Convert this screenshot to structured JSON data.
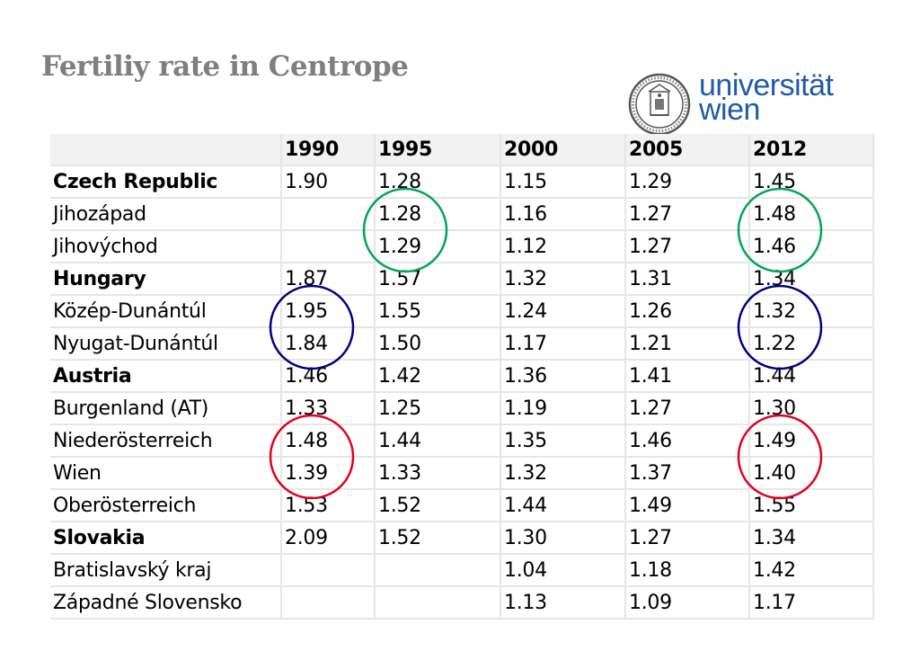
{
  "title": "Fertiliy rate in Centrope",
  "logo": {
    "line1": "universität",
    "line2": "wien",
    "seal": "university-seal-icon",
    "color": "#1f5ba8"
  },
  "table": {
    "headers": [
      "",
      "1990",
      "1995",
      "2000",
      "2005",
      "2012"
    ],
    "rows": [
      {
        "name": "Czech Republic",
        "country": true,
        "values": [
          "1.90",
          "1.28",
          "1.15",
          "1.29",
          "1.45"
        ]
      },
      {
        "name": "Jihozápad",
        "country": false,
        "values": [
          "",
          "1.28",
          "1.16",
          "1.27",
          "1.48"
        ]
      },
      {
        "name": "Jihovýchod",
        "country": false,
        "values": [
          "",
          "1.29",
          "1.12",
          "1.27",
          "1.46"
        ]
      },
      {
        "name": "Hungary",
        "country": true,
        "values": [
          "1.87",
          "1.57",
          "1.32",
          "1.31",
          "1.34"
        ]
      },
      {
        "name": "Közép-Dunántúl",
        "country": false,
        "values": [
          "1.95",
          "1.55",
          "1.24",
          "1.26",
          "1.32"
        ]
      },
      {
        "name": "Nyugat-Dunántúl",
        "country": false,
        "values": [
          "1.84",
          "1.50",
          "1.17",
          "1.21",
          "1.22"
        ]
      },
      {
        "name": "Austria",
        "country": true,
        "values": [
          "1.46",
          "1.42",
          "1.36",
          "1.41",
          "1.44"
        ]
      },
      {
        "name": "Burgenland (AT)",
        "country": false,
        "values": [
          "1.33",
          "1.25",
          "1.19",
          "1.27",
          "1.30"
        ]
      },
      {
        "name": "Niederösterreich",
        "country": false,
        "values": [
          "1.48",
          "1.44",
          "1.35",
          "1.46",
          "1.49"
        ]
      },
      {
        "name": "Wien",
        "country": false,
        "values": [
          "1.39",
          "1.33",
          "1.32",
          "1.37",
          "1.40"
        ]
      },
      {
        "name": "Oberösterreich",
        "country": false,
        "values": [
          "1.53",
          "1.52",
          "1.44",
          "1.49",
          "1.55"
        ]
      },
      {
        "name": "Slovakia",
        "country": true,
        "values": [
          "2.09",
          "1.52",
          "1.30",
          "1.27",
          "1.34"
        ]
      },
      {
        "name": "Bratislavský kraj",
        "country": false,
        "values": [
          "",
          "",
          "1.04",
          "1.18",
          "1.42"
        ]
      },
      {
        "name": "Západné Slovensko",
        "country": false,
        "values": [
          "",
          "",
          "1.13",
          "1.09",
          "1.17"
        ]
      }
    ]
  },
  "highlights": [
    {
      "color": "#00a651",
      "column": "1995",
      "rows": [
        "Jihozápad",
        "Jihovýchod"
      ]
    },
    {
      "color": "#00a651",
      "column": "2012",
      "rows": [
        "Jihozápad",
        "Jihovýchod"
      ]
    },
    {
      "color": "#000080",
      "column": "1990",
      "rows": [
        "Közép-Dunántúl",
        "Nyugat-Dunántúl"
      ]
    },
    {
      "color": "#000080",
      "column": "2012",
      "rows": [
        "Közép-Dunántúl",
        "Nyugat-Dunántúl"
      ]
    },
    {
      "color": "#e2001a",
      "column": "1990",
      "rows": [
        "Niederösterreich",
        "Wien"
      ]
    },
    {
      "color": "#e2001a",
      "column": "2012",
      "rows": [
        "Niederösterreich",
        "Wien"
      ]
    }
  ]
}
